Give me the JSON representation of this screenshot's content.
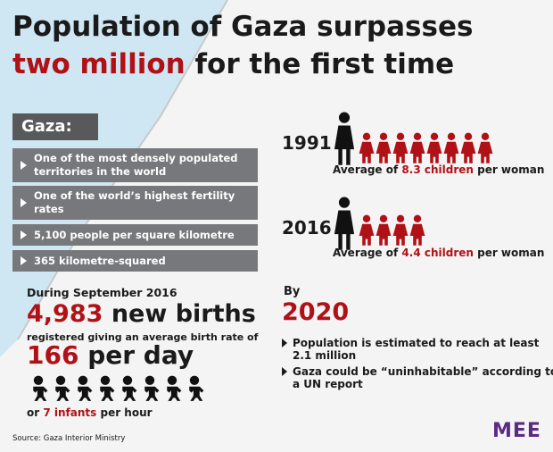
{
  "header": {
    "title_line1": "Population of Gaza surpasses",
    "title_highlight": "two million",
    "title_rest": "for the first time"
  },
  "facts": {
    "heading": "Gaza:",
    "items": [
      "One of the most densely populated territories in the world",
      "One of the world’s highest fertility rates",
      "5,100 people per square kilometre",
      "365 kilometre-squared"
    ]
  },
  "fertility": [
    {
      "year": "1991",
      "prefix": "Average of",
      "highlight": "8.3 children",
      "suffix": "per woman"
    },
    {
      "year": "2016",
      "prefix": "Average of",
      "highlight": "4.4 children",
      "suffix": "per woman"
    }
  ],
  "births": {
    "intro": "During September 2016",
    "count": "4,983",
    "count_label": "new births",
    "middle": "registered giving an average birth rate of",
    "rate_value": "166",
    "rate_unit": "per day",
    "hourly_prefix": "or",
    "hourly_highlight": "7 infants",
    "hourly_suffix": "per hour"
  },
  "outlook": {
    "by": "By",
    "year": "2020",
    "items": [
      "Population is estimated to reach at least 2.1 million",
      "Gaza could be “uninhabitable” according to a UN report"
    ]
  },
  "source": "Source: Gaza Interior Ministry",
  "logo": "MEE"
}
